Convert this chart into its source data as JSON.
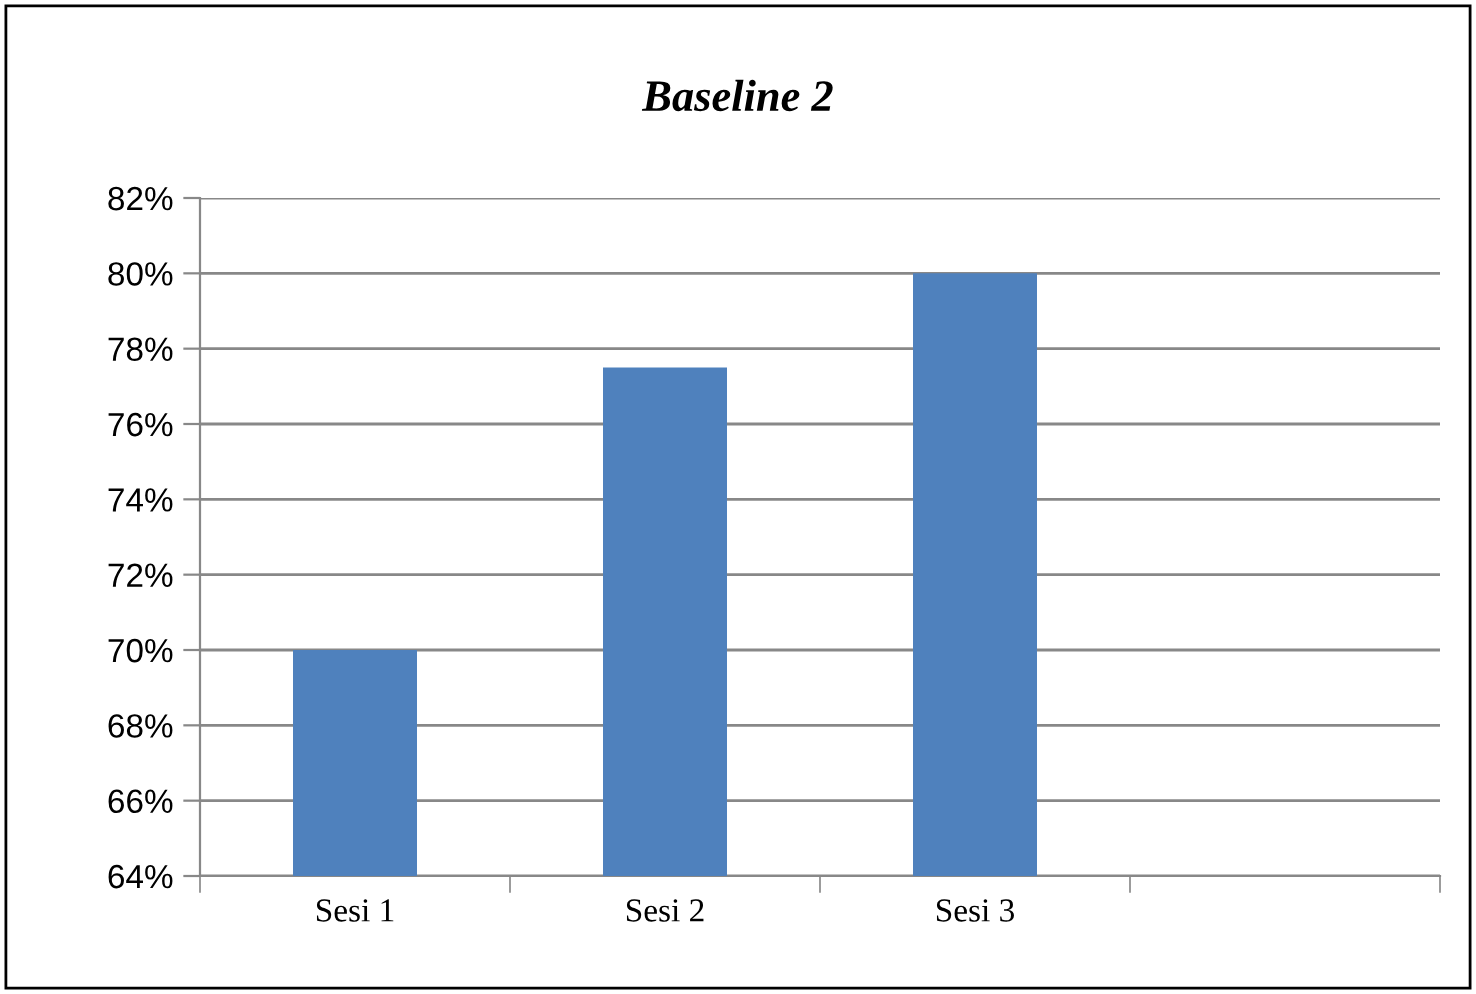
{
  "chart_data": {
    "type": "bar",
    "title": "Baseline 2",
    "categories": [
      "Sesi 1",
      "Sesi 2",
      "Sesi 3",
      null
    ],
    "values": [
      70,
      77.5,
      80,
      null
    ],
    "color": "#4f81bd",
    "ylim": [
      64,
      82
    ],
    "yticks": [
      {
        "value": 64,
        "label": "64%"
      },
      {
        "value": 66,
        "label": "66%"
      },
      {
        "value": 68,
        "label": "68%"
      },
      {
        "value": 70,
        "label": "70%"
      },
      {
        "value": 72,
        "label": "72%"
      },
      {
        "value": 74,
        "label": "74%"
      },
      {
        "value": 76,
        "label": "76%"
      },
      {
        "value": 78,
        "label": "78%"
      },
      {
        "value": 80,
        "label": "80%"
      },
      {
        "value": 82,
        "label": "82%"
      }
    ],
    "grid": "y"
  }
}
